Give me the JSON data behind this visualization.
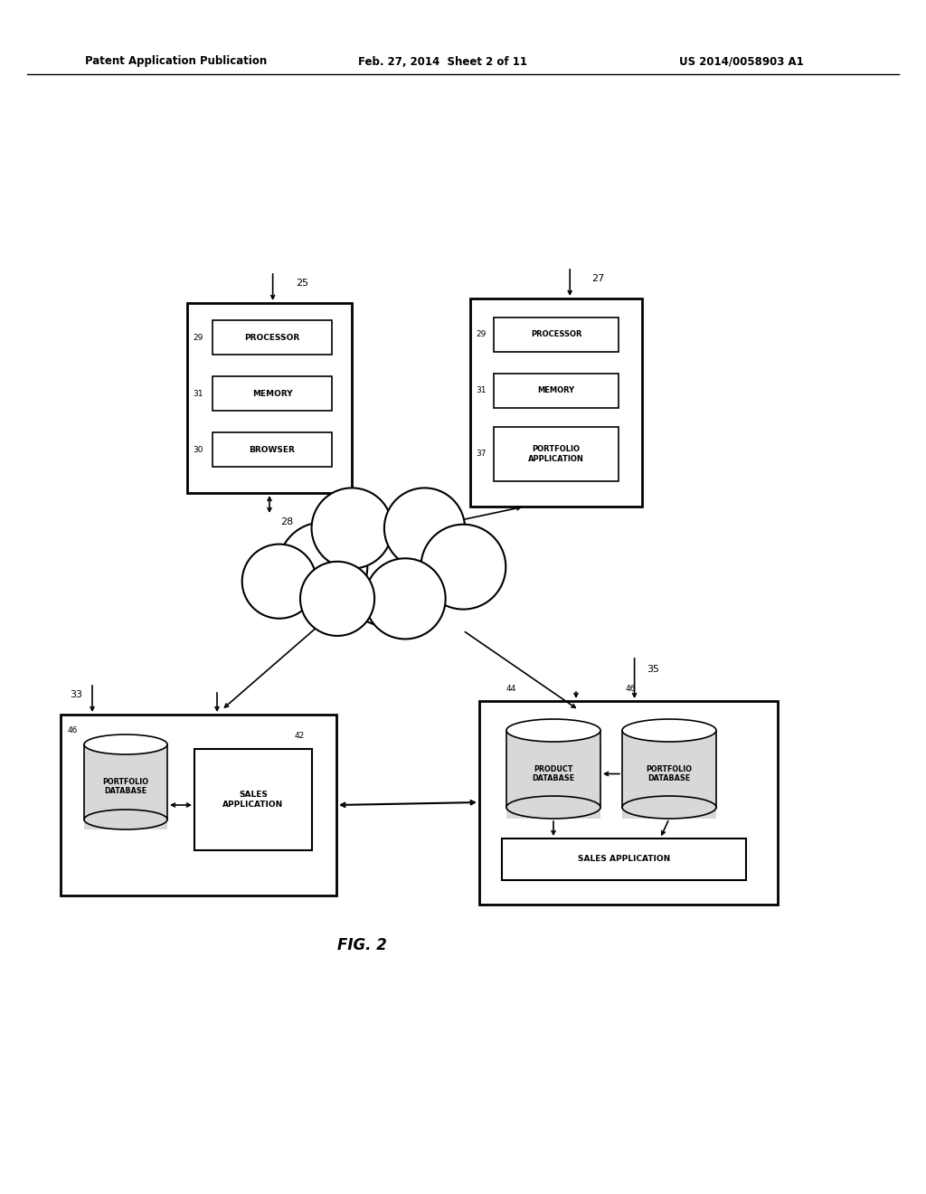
{
  "bg_color": "#ffffff",
  "header_text": "Patent Application Publication",
  "header_date": "Feb. 27, 2014  Sheet 2 of 11",
  "header_patent": "US 2014/0058903 A1",
  "fig_label": "FIG. 2",
  "cloud_label": "28",
  "node25_label": "25",
  "node27_label": "27",
  "node33_label": "33",
  "node35_label": "35",
  "node25_items": [
    "PROCESSOR",
    "MEMORY",
    "BROWSER"
  ],
  "node25_nums": [
    "29",
    "31",
    "30"
  ],
  "node27_items": [
    "PROCESSOR",
    "MEMORY",
    "PORTFOLIO\nAPPLICATION"
  ],
  "node27_nums": [
    "29",
    "31",
    "37"
  ],
  "node33_db_label": "PORTFOLIO\nDATABASE",
  "node33_db_num": "46",
  "node33_app_label": "SALES\nAPPLICATION",
  "node33_app_num": "42",
  "node35_db1_label": "PRODUCT\nDATABASE",
  "node35_db1_num": "44",
  "node35_db2_label": "PORTFOLIO\nDATABASE",
  "node35_db2_num": "46",
  "node35_app_label": "SALES APPLICATION",
  "node35_num": "35"
}
